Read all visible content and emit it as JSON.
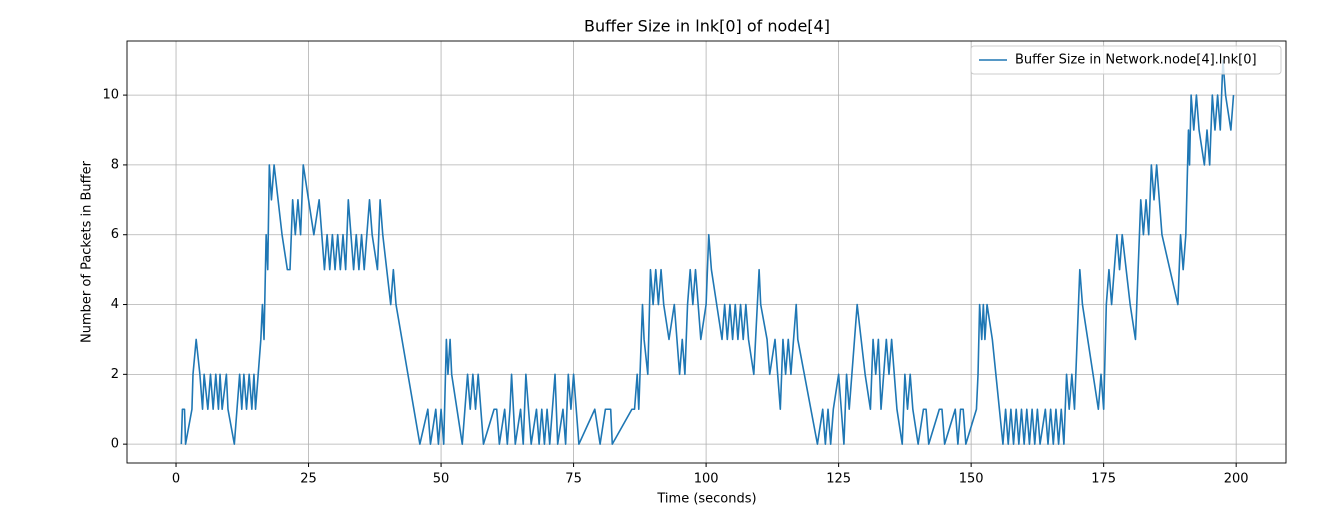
{
  "chart_data": {
    "type": "line",
    "title": "Buffer Size in lnk[0] of node[4]",
    "xlabel": "Time (seconds)",
    "ylabel": "Number of Packets in Buffer",
    "x": [
      1,
      1.2,
      1.6,
      1.8,
      3,
      3.2,
      3.8,
      4.5,
      5,
      5.3,
      6,
      6.5,
      7,
      7.5,
      8,
      8.3,
      8.7,
      9.5,
      9.8,
      11,
      11.5,
      12,
      12.4,
      12.8,
      13.3,
      13.8,
      14.3,
      14.7,
      15,
      15.5,
      16,
      16.3,
      16.6,
      17,
      17.3,
      17.6,
      18,
      18.5,
      20,
      21,
      21.5,
      22,
      22.5,
      23,
      23.5,
      24,
      25,
      26,
      27,
      27.5,
      28,
      28.5,
      29,
      29.5,
      30,
      30.5,
      31,
      31.5,
      32,
      32.5,
      33,
      33.5,
      34,
      34.5,
      35,
      35.5,
      36,
      36.5,
      37,
      38,
      38.5,
      39,
      40.5,
      41,
      41.5,
      46,
      47.5,
      48,
      49,
      49.5,
      50,
      50.5,
      51,
      51.3,
      51.7,
      52,
      54,
      55,
      55.5,
      56,
      56.5,
      57,
      58,
      60,
      60.5,
      61,
      62,
      62.5,
      63,
      63.3,
      64,
      65,
      65.5,
      66,
      66.5,
      67,
      68,
      68.5,
      69,
      69.5,
      70,
      70.5,
      71,
      71.5,
      72,
      73,
      73.5,
      74,
      74.5,
      75,
      76,
      79,
      80,
      81,
      82,
      82.3,
      86,
      86.5,
      87,
      87.3,
      88,
      88.3,
      89,
      89.5,
      90,
      90.5,
      91,
      91.5,
      92,
      93,
      94,
      95,
      95.5,
      96,
      96.5,
      97,
      97.5,
      98,
      98.5,
      99,
      100,
      100.5,
      101,
      103,
      103.5,
      104,
      104.5,
      105,
      105.5,
      106,
      106.5,
      107,
      107.5,
      108,
      109,
      110,
      110.3,
      111.5,
      112,
      113,
      114,
      114.5,
      115,
      115.5,
      116,
      117,
      117.3,
      121,
      122,
      122.5,
      123,
      123.5,
      124,
      125,
      125.5,
      126,
      126.5,
      127,
      128,
      128.5,
      130,
      131,
      131.5,
      132,
      132.5,
      133,
      134,
      134.5,
      135,
      136,
      137,
      137.5,
      138,
      138.5,
      139,
      140,
      141,
      141.5,
      142,
      144,
      144.5,
      145,
      147,
      147.5,
      148,
      148.5,
      149,
      151,
      151.3,
      151.6,
      152,
      152.3,
      152.6,
      153,
      154,
      156,
      156.5,
      157,
      157.5,
      158,
      158.5,
      159,
      159.5,
      160,
      160.5,
      161,
      161.5,
      162,
      162.5,
      163,
      164,
      164.5,
      165,
      165.5,
      166,
      166.5,
      167,
      167.5,
      168,
      168.5,
      169,
      169.5,
      170,
      170.5,
      171,
      174,
      174.5,
      175,
      175.5,
      176,
      176.5,
      177,
      177.5,
      178,
      178.5,
      180,
      181,
      181.5,
      182,
      182.5,
      183,
      183.5,
      184,
      184.5,
      185,
      186,
      189,
      189.5,
      190,
      190.5,
      191,
      191.2,
      191.5,
      192,
      192.5,
      193,
      194,
      194.5,
      195,
      195.5,
      196,
      196.5,
      197,
      197.5,
      198,
      199,
      199.5
    ],
    "series": [
      {
        "name": "Buffer Size in Network.node[4].lnk[0]",
        "color": "#1f77b4",
        "values": [
          0,
          1,
          1,
          0,
          1,
          2,
          3,
          2,
          1,
          2,
          1,
          2,
          1,
          2,
          1,
          2,
          1,
          2,
          1,
          0,
          1,
          2,
          1,
          2,
          1,
          2,
          1,
          2,
          1,
          2,
          3,
          4,
          3,
          6,
          5,
          8,
          7,
          8,
          6,
          5,
          5,
          7,
          6,
          7,
          6,
          8,
          7,
          6,
          7,
          6,
          5,
          6,
          5,
          6,
          5,
          6,
          5,
          6,
          5,
          7,
          6,
          5,
          6,
          5,
          6,
          5,
          6,
          7,
          6,
          5,
          7,
          6,
          4,
          5,
          4,
          0,
          1,
          0,
          1,
          0,
          1,
          0,
          3,
          2,
          3,
          2,
          0,
          2,
          1,
          2,
          1,
          2,
          0,
          1,
          1,
          0,
          1,
          0,
          1,
          2,
          0,
          1,
          0,
          2,
          1,
          0,
          1,
          0,
          1,
          0,
          1,
          0,
          1,
          2,
          0,
          1,
          0,
          2,
          1,
          2,
          0,
          1,
          0,
          1,
          1,
          0,
          1,
          1,
          2,
          1,
          4,
          3,
          2,
          5,
          4,
          5,
          4,
          5,
          4,
          3,
          4,
          2,
          3,
          2,
          4,
          5,
          4,
          5,
          4,
          3,
          4,
          6,
          5,
          3,
          4,
          3,
          4,
          3,
          4,
          3,
          4,
          3,
          4,
          3,
          2,
          5,
          4,
          3,
          2,
          3,
          1,
          3,
          2,
          3,
          2,
          4,
          3,
          0,
          1,
          0,
          1,
          0,
          1,
          2,
          1,
          0,
          2,
          1,
          3,
          4,
          2,
          1,
          3,
          2,
          3,
          1,
          3,
          2,
          3,
          1,
          0,
          2,
          1,
          2,
          1,
          0,
          1,
          1,
          0,
          1,
          1,
          0,
          1,
          0,
          1,
          1,
          0,
          1,
          2,
          4,
          3,
          4,
          3,
          4,
          3,
          0,
          1,
          0,
          1,
          0,
          1,
          0,
          1,
          0,
          1,
          0,
          1,
          0,
          1,
          0,
          1,
          0,
          1,
          0,
          1,
          0,
          1,
          0,
          2,
          1,
          2,
          1,
          3,
          5,
          4,
          1,
          2,
          1,
          4,
          5,
          4,
          5,
          6,
          5,
          6,
          4,
          3,
          5,
          7,
          6,
          7,
          6,
          8,
          7,
          8,
          6,
          4,
          6,
          5,
          6,
          9,
          8,
          10,
          9,
          10,
          9,
          8,
          9,
          8,
          10,
          9,
          10,
          9,
          11,
          10,
          9,
          10
        ]
      }
    ],
    "xlim": [
      -9.25,
      209.4
    ],
    "ylim": [
      -0.54,
      11.55
    ],
    "xticks": [
      0,
      25,
      50,
      75,
      100,
      125,
      150,
      175,
      200
    ],
    "yticks": [
      0,
      2,
      4,
      6,
      8,
      10
    ],
    "grid": true,
    "legend": "upper right"
  }
}
